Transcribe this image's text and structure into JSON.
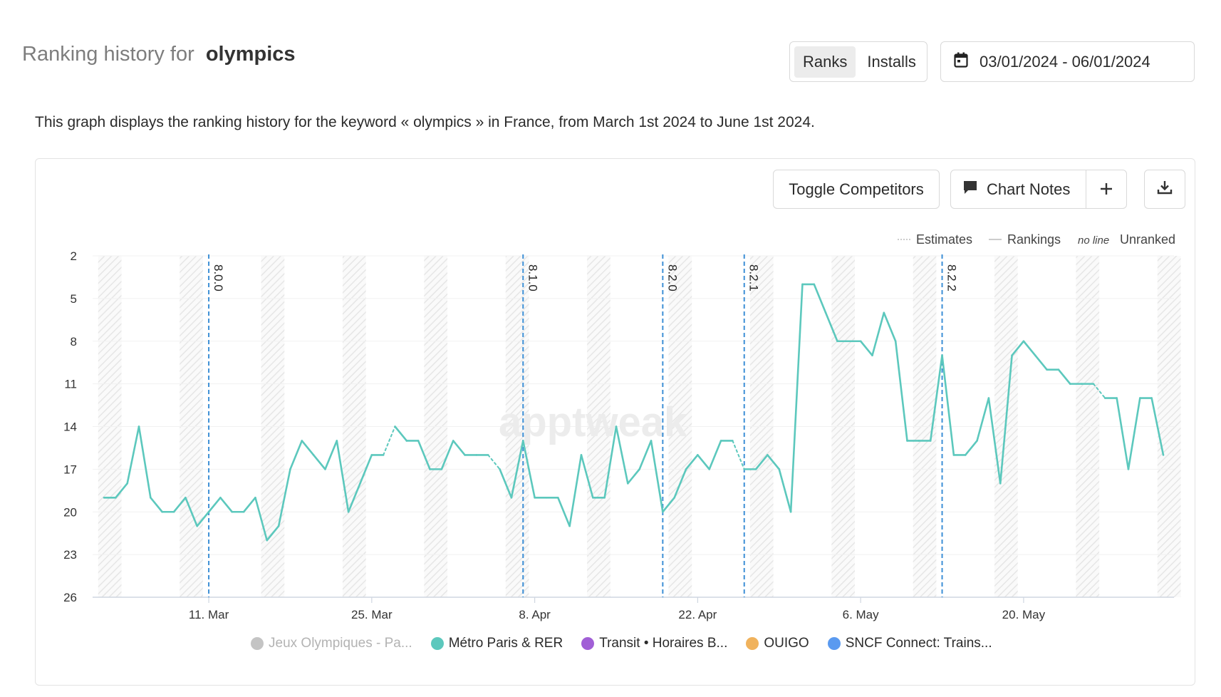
{
  "header": {
    "title_prefix": "Ranking history for",
    "keyword": "olympics",
    "tabs": [
      {
        "label": "Ranks",
        "active": true
      },
      {
        "label": "Installs",
        "active": false
      }
    ],
    "date_range": "03/01/2024 - 06/01/2024",
    "date_icon": "calendar-icon"
  },
  "description": "This graph displays the ranking history for the keyword « olympics » in France, from March 1st 2024 to June 1st 2024.",
  "toolbar": {
    "toggle_competitors": "Toggle Competitors",
    "chart_notes": "Chart Notes",
    "add_icon": "plus-icon",
    "download_icon": "download-icon",
    "notes_icon": "comment-icon"
  },
  "top_legend": {
    "estimates": "Estimates",
    "rankings": "Rankings",
    "no_line": "no line",
    "unranked": "Unranked"
  },
  "watermark": "apptweak",
  "colors": {
    "series": "#5cc8bd",
    "version_marker": "#3d8fd6",
    "accent_teal": "#5cc8bd"
  },
  "legend": [
    {
      "label": "Jeux Olympiques - Pa...",
      "color": "#c4c4c4",
      "disabled": true
    },
    {
      "label": "Métro Paris & RER",
      "color": "#5cc8bd",
      "disabled": false
    },
    {
      "label": "Transit • Horaires B...",
      "color": "#a15fd6",
      "disabled": false
    },
    {
      "label": "OUIGO",
      "color": "#f0b25c",
      "disabled": false
    },
    {
      "label": "SNCF Connect: Trains...",
      "color": "#5a9af0",
      "disabled": false
    }
  ],
  "chart_data": {
    "type": "line",
    "title": "",
    "xlabel": "",
    "ylabel": "",
    "y_reversed": true,
    "ylim": [
      2,
      26
    ],
    "yticks": [
      2,
      5,
      8,
      11,
      14,
      17,
      20,
      23,
      26
    ],
    "x_start": "2024-03-02",
    "x_end": "2024-06-01",
    "xticks": [
      {
        "date": "2024-03-11",
        "label": "11. Mar"
      },
      {
        "date": "2024-03-25",
        "label": "25. Mar"
      },
      {
        "date": "2024-04-08",
        "label": "8. Apr"
      },
      {
        "date": "2024-04-22",
        "label": "22. Apr"
      },
      {
        "date": "2024-05-06",
        "label": "6. May"
      },
      {
        "date": "2024-05-20",
        "label": "20. May"
      }
    ],
    "grid": true,
    "weekend_shading": true,
    "version_markers": [
      {
        "date": "2024-03-11",
        "label": "8.0.0"
      },
      {
        "date": "2024-04-07",
        "label": "8.1.0"
      },
      {
        "date": "2024-04-19",
        "label": "8.2.0"
      },
      {
        "date": "2024-04-26",
        "label": "8.2.1"
      },
      {
        "date": "2024-05-13",
        "label": "8.2.2"
      }
    ],
    "series": [
      {
        "name": "Métro Paris & RER",
        "points": [
          {
            "date": "2024-03-02",
            "rank": 19
          },
          {
            "date": "2024-03-03",
            "rank": 19
          },
          {
            "date": "2024-03-04",
            "rank": 18
          },
          {
            "date": "2024-03-05",
            "rank": 14
          },
          {
            "date": "2024-03-06",
            "rank": 19
          },
          {
            "date": "2024-03-07",
            "rank": 20
          },
          {
            "date": "2024-03-08",
            "rank": 20
          },
          {
            "date": "2024-03-09",
            "rank": 19
          },
          {
            "date": "2024-03-10",
            "rank": 21
          },
          {
            "date": "2024-03-11",
            "rank": 20
          },
          {
            "date": "2024-03-12",
            "rank": 19
          },
          {
            "date": "2024-03-13",
            "rank": 20
          },
          {
            "date": "2024-03-14",
            "rank": 20
          },
          {
            "date": "2024-03-15",
            "rank": 19
          },
          {
            "date": "2024-03-16",
            "rank": 22
          },
          {
            "date": "2024-03-17",
            "rank": 21
          },
          {
            "date": "2024-03-18",
            "rank": 17
          },
          {
            "date": "2024-03-19",
            "rank": 15
          },
          {
            "date": "2024-03-20",
            "rank": 16
          },
          {
            "date": "2024-03-21",
            "rank": 17
          },
          {
            "date": "2024-03-22",
            "rank": 15
          },
          {
            "date": "2024-03-23",
            "rank": 20
          },
          {
            "date": "2024-03-24",
            "rank": 18
          },
          {
            "date": "2024-03-25",
            "rank": 16
          },
          {
            "date": "2024-03-26",
            "rank": 16,
            "estimate": true
          },
          {
            "date": "2024-03-27",
            "rank": 14,
            "estimate": true
          },
          {
            "date": "2024-03-28",
            "rank": 15
          },
          {
            "date": "2024-03-29",
            "rank": 15
          },
          {
            "date": "2024-03-30",
            "rank": 17
          },
          {
            "date": "2024-03-31",
            "rank": 17
          },
          {
            "date": "2024-04-01",
            "rank": 15
          },
          {
            "date": "2024-04-02",
            "rank": 16
          },
          {
            "date": "2024-04-03",
            "rank": 16
          },
          {
            "date": "2024-04-04",
            "rank": 16,
            "estimate": true
          },
          {
            "date": "2024-04-05",
            "rank": 17,
            "estimate": true
          },
          {
            "date": "2024-04-06",
            "rank": 19
          },
          {
            "date": "2024-04-07",
            "rank": 15
          },
          {
            "date": "2024-04-08",
            "rank": 19
          },
          {
            "date": "2024-04-09",
            "rank": 19
          },
          {
            "date": "2024-04-10",
            "rank": 19
          },
          {
            "date": "2024-04-11",
            "rank": 21
          },
          {
            "date": "2024-04-12",
            "rank": 16
          },
          {
            "date": "2024-04-13",
            "rank": 19
          },
          {
            "date": "2024-04-14",
            "rank": 19
          },
          {
            "date": "2024-04-15",
            "rank": 14
          },
          {
            "date": "2024-04-16",
            "rank": 18
          },
          {
            "date": "2024-04-17",
            "rank": 17
          },
          {
            "date": "2024-04-18",
            "rank": 15
          },
          {
            "date": "2024-04-19",
            "rank": 20
          },
          {
            "date": "2024-04-20",
            "rank": 19
          },
          {
            "date": "2024-04-21",
            "rank": 17
          },
          {
            "date": "2024-04-22",
            "rank": 16
          },
          {
            "date": "2024-04-23",
            "rank": 17
          },
          {
            "date": "2024-04-24",
            "rank": 15
          },
          {
            "date": "2024-04-25",
            "rank": 15,
            "estimate": true
          },
          {
            "date": "2024-04-26",
            "rank": 17,
            "estimate": true
          },
          {
            "date": "2024-04-27",
            "rank": 17
          },
          {
            "date": "2024-04-28",
            "rank": 16
          },
          {
            "date": "2024-04-29",
            "rank": 17
          },
          {
            "date": "2024-04-30",
            "rank": 20
          },
          {
            "date": "2024-05-01",
            "rank": 4
          },
          {
            "date": "2024-05-02",
            "rank": 4
          },
          {
            "date": "2024-05-03",
            "rank": 6
          },
          {
            "date": "2024-05-04",
            "rank": 8
          },
          {
            "date": "2024-05-05",
            "rank": 8
          },
          {
            "date": "2024-05-06",
            "rank": 8
          },
          {
            "date": "2024-05-07",
            "rank": 9
          },
          {
            "date": "2024-05-08",
            "rank": 6
          },
          {
            "date": "2024-05-09",
            "rank": 8
          },
          {
            "date": "2024-05-10",
            "rank": 15
          },
          {
            "date": "2024-05-11",
            "rank": 15
          },
          {
            "date": "2024-05-12",
            "rank": 15
          },
          {
            "date": "2024-05-13",
            "rank": 9
          },
          {
            "date": "2024-05-14",
            "rank": 16
          },
          {
            "date": "2024-05-15",
            "rank": 16
          },
          {
            "date": "2024-05-16",
            "rank": 15
          },
          {
            "date": "2024-05-17",
            "rank": 12
          },
          {
            "date": "2024-05-18",
            "rank": 18
          },
          {
            "date": "2024-05-19",
            "rank": 9
          },
          {
            "date": "2024-05-20",
            "rank": 8
          },
          {
            "date": "2024-05-21",
            "rank": 9
          },
          {
            "date": "2024-05-22",
            "rank": 10
          },
          {
            "date": "2024-05-23",
            "rank": 10
          },
          {
            "date": "2024-05-24",
            "rank": 11
          },
          {
            "date": "2024-05-25",
            "rank": 11
          },
          {
            "date": "2024-05-26",
            "rank": 11,
            "estimate": true
          },
          {
            "date": "2024-05-27",
            "rank": 12,
            "estimate": true
          },
          {
            "date": "2024-05-28",
            "rank": 12
          },
          {
            "date": "2024-05-29",
            "rank": 17
          },
          {
            "date": "2024-05-30",
            "rank": 12
          },
          {
            "date": "2024-05-31",
            "rank": 12
          },
          {
            "date": "2024-06-01",
            "rank": 16
          }
        ]
      }
    ]
  }
}
